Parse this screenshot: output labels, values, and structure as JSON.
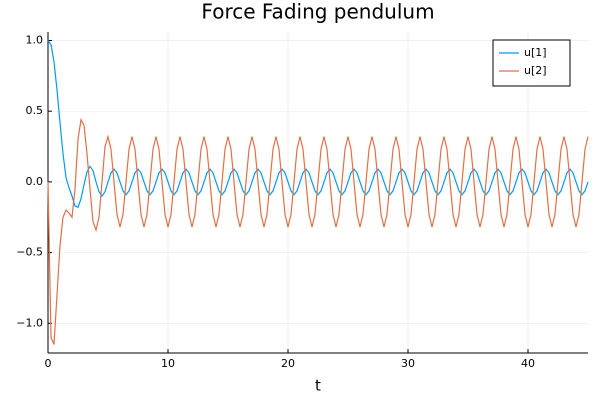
{
  "chart_data": {
    "type": "line",
    "title": "Force Fading pendulum",
    "x_label": "t",
    "x": [
      0,
      0.25,
      0.5,
      0.75,
      1,
      1.25,
      1.5,
      1.75,
      2,
      2.25,
      2.5,
      2.75,
      3,
      3.25,
      3.5,
      3.75,
      4,
      4.25,
      4.5,
      4.75,
      5,
      5.25,
      5.5,
      5.75,
      6,
      6.25,
      6.5,
      6.75,
      7,
      7.25,
      7.5,
      7.75,
      8,
      8.25,
      8.5,
      8.75,
      9,
      9.25,
      9.5,
      9.75,
      10,
      10.25,
      10.5,
      10.75,
      11,
      11.25,
      11.5,
      11.75,
      12,
      12.25,
      12.5,
      12.75,
      13,
      13.25,
      13.5,
      13.75,
      14,
      14.25,
      14.5,
      14.75,
      15,
      15.25,
      15.5,
      15.75,
      16,
      16.25,
      16.5,
      16.75,
      17,
      17.25,
      17.5,
      17.75,
      18,
      18.25,
      18.5,
      18.75,
      19,
      19.25,
      19.5,
      19.75,
      20,
      20.25,
      20.5,
      20.75,
      21,
      21.25,
      21.5,
      21.75,
      22,
      22.25,
      22.5,
      22.75,
      23,
      23.25,
      23.5,
      23.75,
      24,
      24.25,
      24.5,
      24.75,
      25,
      25.25,
      25.5,
      25.75,
      26,
      26.25,
      26.5,
      26.75,
      27,
      27.25,
      27.5,
      27.75,
      28,
      28.25,
      28.5,
      28.75,
      29,
      29.25,
      29.5,
      29.75,
      30,
      30.25,
      30.5,
      30.75,
      31,
      31.25,
      31.5,
      31.75,
      32,
      32.25,
      32.5,
      32.75,
      33,
      33.25,
      33.5,
      33.75,
      34,
      34.25,
      34.5,
      34.75,
      35,
      35.25,
      35.5,
      35.75,
      36,
      36.25,
      36.5,
      36.75,
      37,
      37.25,
      37.5,
      37.75,
      38,
      38.25,
      38.5,
      38.75,
      39,
      39.25,
      39.5,
      39.75,
      40,
      40.25,
      40.5,
      40.75,
      41,
      41.25,
      41.5,
      41.75,
      42,
      42.25,
      42.5,
      42.75,
      43,
      43.25,
      43.5,
      43.75,
      44,
      44.25,
      44.5,
      44.75,
      45
    ],
    "series": [
      {
        "name": "u[1]",
        "color": "#009af9",
        "values": [
          1.0,
          0.97,
          0.85,
          0.65,
          0.42,
          0.2,
          0.03,
          -0.04,
          -0.1,
          -0.17,
          -0.18,
          -0.12,
          -0.02,
          0.07,
          0.11,
          0.08,
          0,
          -0.07,
          -0.1,
          -0.07,
          0,
          0.064,
          0.09,
          0.064,
          0,
          -0.064,
          -0.09,
          -0.064,
          0,
          0.064,
          0.09,
          0.064,
          0,
          -0.064,
          -0.09,
          -0.064,
          0,
          0.064,
          0.09,
          0.064,
          0,
          -0.064,
          -0.09,
          -0.064,
          0,
          0.064,
          0.09,
          0.064,
          0,
          -0.064,
          -0.09,
          -0.064,
          0,
          0.064,
          0.09,
          0.064,
          0,
          -0.064,
          -0.09,
          -0.064,
          0,
          0.064,
          0.09,
          0.064,
          0,
          -0.064,
          -0.09,
          -0.064,
          0,
          0.064,
          0.09,
          0.064,
          0,
          -0.064,
          -0.09,
          -0.064,
          0,
          0.064,
          0.09,
          0.064,
          0,
          -0.064,
          -0.09,
          -0.064,
          0,
          0.064,
          0.09,
          0.064,
          0,
          -0.064,
          -0.09,
          -0.064,
          0,
          0.064,
          0.09,
          0.064,
          0,
          -0.064,
          -0.09,
          -0.064,
          0,
          0.064,
          0.09,
          0.064,
          0,
          -0.064,
          -0.09,
          -0.064,
          0,
          0.064,
          0.09,
          0.064,
          0,
          -0.064,
          -0.09,
          -0.064,
          0,
          0.064,
          0.09,
          0.064,
          0,
          -0.064,
          -0.09,
          -0.064,
          0,
          0.064,
          0.09,
          0.064,
          0,
          -0.064,
          -0.09,
          -0.064,
          0,
          0.064,
          0.09,
          0.064,
          0,
          -0.064,
          -0.09,
          -0.064,
          0,
          0.064,
          0.09,
          0.064,
          0,
          -0.064,
          -0.09,
          -0.064,
          0,
          0.064,
          0.09,
          0.064,
          0,
          -0.064,
          -0.09,
          -0.064,
          0,
          0.064,
          0.09,
          0.064,
          0,
          -0.064,
          -0.09,
          -0.064,
          0,
          0.064,
          0.09,
          0.064,
          0,
          -0.064,
          -0.09,
          -0.064,
          0,
          0.064,
          0.09,
          0.064,
          0,
          -0.064,
          -0.09,
          -0.064,
          0
        ]
      },
      {
        "name": "u[2]",
        "color": "#e26f46",
        "values": [
          0,
          -1.1,
          -1.15,
          -0.8,
          -0.45,
          -0.25,
          -0.2,
          -0.22,
          -0.25,
          -0.05,
          0.3,
          0.44,
          0.4,
          0.2,
          -0.05,
          -0.28,
          -0.34,
          -0.25,
          0,
          0.25,
          0.32,
          0.23,
          0,
          -0.23,
          -0.32,
          -0.23,
          0,
          0.23,
          0.32,
          0.23,
          0,
          -0.23,
          -0.32,
          -0.23,
          0,
          0.23,
          0.32,
          0.23,
          0,
          -0.23,
          -0.32,
          -0.23,
          0,
          0.23,
          0.32,
          0.23,
          0,
          -0.23,
          -0.32,
          -0.23,
          0,
          0.23,
          0.32,
          0.23,
          0,
          -0.23,
          -0.32,
          -0.23,
          0,
          0.23,
          0.32,
          0.23,
          0,
          -0.23,
          -0.32,
          -0.23,
          0,
          0.23,
          0.32,
          0.23,
          0,
          -0.23,
          -0.32,
          -0.23,
          0,
          0.23,
          0.32,
          0.23,
          0,
          -0.23,
          -0.32,
          -0.23,
          0,
          0.23,
          0.32,
          0.23,
          0,
          -0.23,
          -0.32,
          -0.23,
          0,
          0.23,
          0.32,
          0.23,
          0,
          -0.23,
          -0.32,
          -0.23,
          0,
          0.23,
          0.32,
          0.23,
          0,
          -0.23,
          -0.32,
          -0.23,
          0,
          0.23,
          0.32,
          0.23,
          0,
          -0.23,
          -0.32,
          -0.23,
          0,
          0.23,
          0.32,
          0.23,
          0,
          -0.23,
          -0.32,
          -0.23,
          0,
          0.23,
          0.32,
          0.23,
          0,
          -0.23,
          -0.32,
          -0.23,
          0,
          0.23,
          0.32,
          0.23,
          0,
          -0.23,
          -0.32,
          -0.23,
          0,
          0.23,
          0.32,
          0.23,
          0,
          -0.23,
          -0.32,
          -0.23,
          0,
          0.23,
          0.32,
          0.23,
          0,
          -0.23,
          -0.32,
          -0.23,
          0,
          0.23,
          0.32,
          0.23,
          0,
          -0.23,
          -0.32,
          -0.23,
          0,
          0.23,
          0.32,
          0.23,
          0,
          -0.23,
          -0.32,
          -0.23,
          0,
          0.23,
          0.32,
          0.23,
          0,
          -0.23,
          -0.32,
          -0.23,
          0,
          0.23,
          0.32
        ]
      }
    ],
    "xlim": [
      0,
      45
    ],
    "xticks": [
      0,
      10,
      20,
      30,
      40
    ],
    "ylim": [
      -1.21,
      1.06
    ],
    "yticks": [
      {
        "value": -1.0,
        "label": "−1.0"
      },
      {
        "value": -0.5,
        "label": "−0.5"
      },
      {
        "value": 0.0,
        "label": "0.0"
      },
      {
        "value": 0.5,
        "label": "0.5"
      },
      {
        "value": 1.0,
        "label": "1.0"
      }
    ],
    "grid": true,
    "legend": "top-right"
  }
}
